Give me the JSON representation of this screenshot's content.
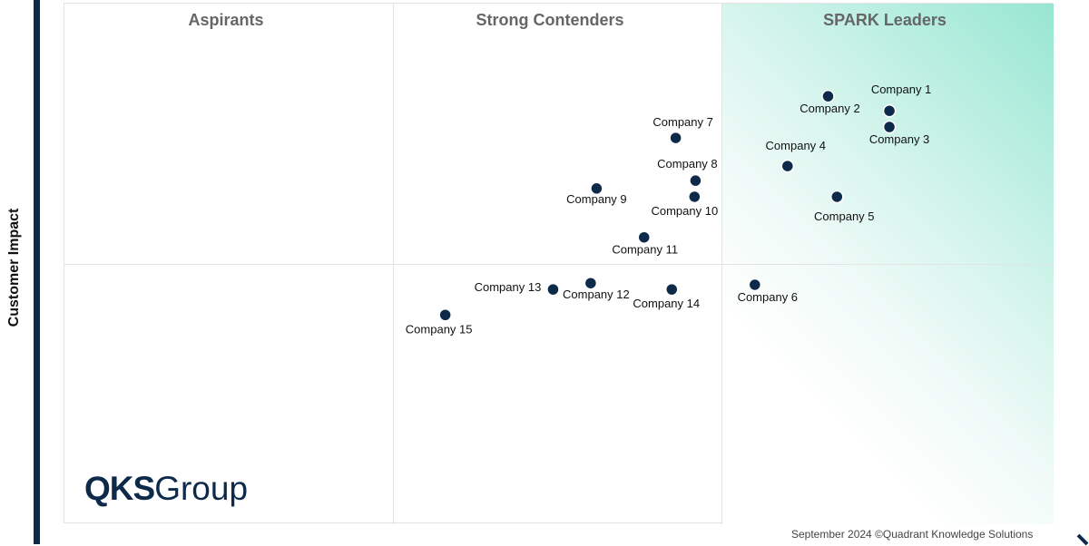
{
  "chart_data": {
    "type": "scatter",
    "title": "",
    "xlabel": "",
    "ylabel": "Customer Impact",
    "xlim": [
      0,
      100
    ],
    "ylim": [
      0,
      100
    ],
    "grid": false,
    "quadrants": [
      "Aspirants",
      "Strong Contenders",
      "SPARK Leaders"
    ],
    "points": [
      {
        "label": "Company 1",
        "x": 83.4,
        "y": 79.4
      },
      {
        "label": "Company 2",
        "x": 77.2,
        "y": 82.2
      },
      {
        "label": "Company 3",
        "x": 83.4,
        "y": 76.3
      },
      {
        "label": "Company 4",
        "x": 73.1,
        "y": 68.8
      },
      {
        "label": "Company 5",
        "x": 78.1,
        "y": 62.9
      },
      {
        "label": "Company 6",
        "x": 69.8,
        "y": 46.0
      },
      {
        "label": "Company 7",
        "x": 61.8,
        "y": 74.2
      },
      {
        "label": "Company 8",
        "x": 63.8,
        "y": 66.0
      },
      {
        "label": "Company 9",
        "x": 53.8,
        "y": 64.5
      },
      {
        "label": "Company 10",
        "x": 63.7,
        "y": 62.9
      },
      {
        "label": "Company 11",
        "x": 58.6,
        "y": 55.1
      },
      {
        "label": "Company 12",
        "x": 53.2,
        "y": 46.3
      },
      {
        "label": "Company 13",
        "x": 49.4,
        "y": 45.1
      },
      {
        "label": "Company 14",
        "x": 61.4,
        "y": 45.1
      },
      {
        "label": "Company 15",
        "x": 38.5,
        "y": 40.2
      }
    ]
  },
  "colors": {
    "point": "#0d2a4a",
    "leader_gradient": "#97e6d2",
    "axis": "#0d2a4a"
  },
  "logo": {
    "bold": "QKS",
    "light": "Group"
  },
  "footer": "September 2024 ©Quadrant Knowledge Solutions"
}
